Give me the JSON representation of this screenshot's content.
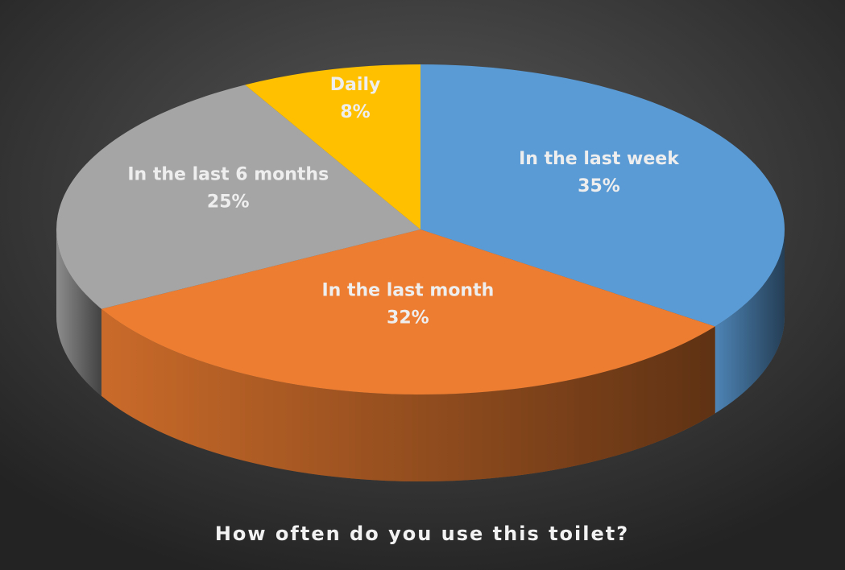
{
  "chart_data": {
    "type": "pie",
    "title": "How often do you use this toilet?",
    "categories": [
      "In the last week",
      "In the last month",
      "In the last 6 months",
      "Daily"
    ],
    "values": [
      35,
      32,
      25,
      8
    ],
    "value_labels": [
      "35%",
      "32%",
      "25%",
      "8%"
    ],
    "colors": [
      "#5b9bd5",
      "#ed7d31",
      "#a5a5a5",
      "#ffc000"
    ]
  }
}
